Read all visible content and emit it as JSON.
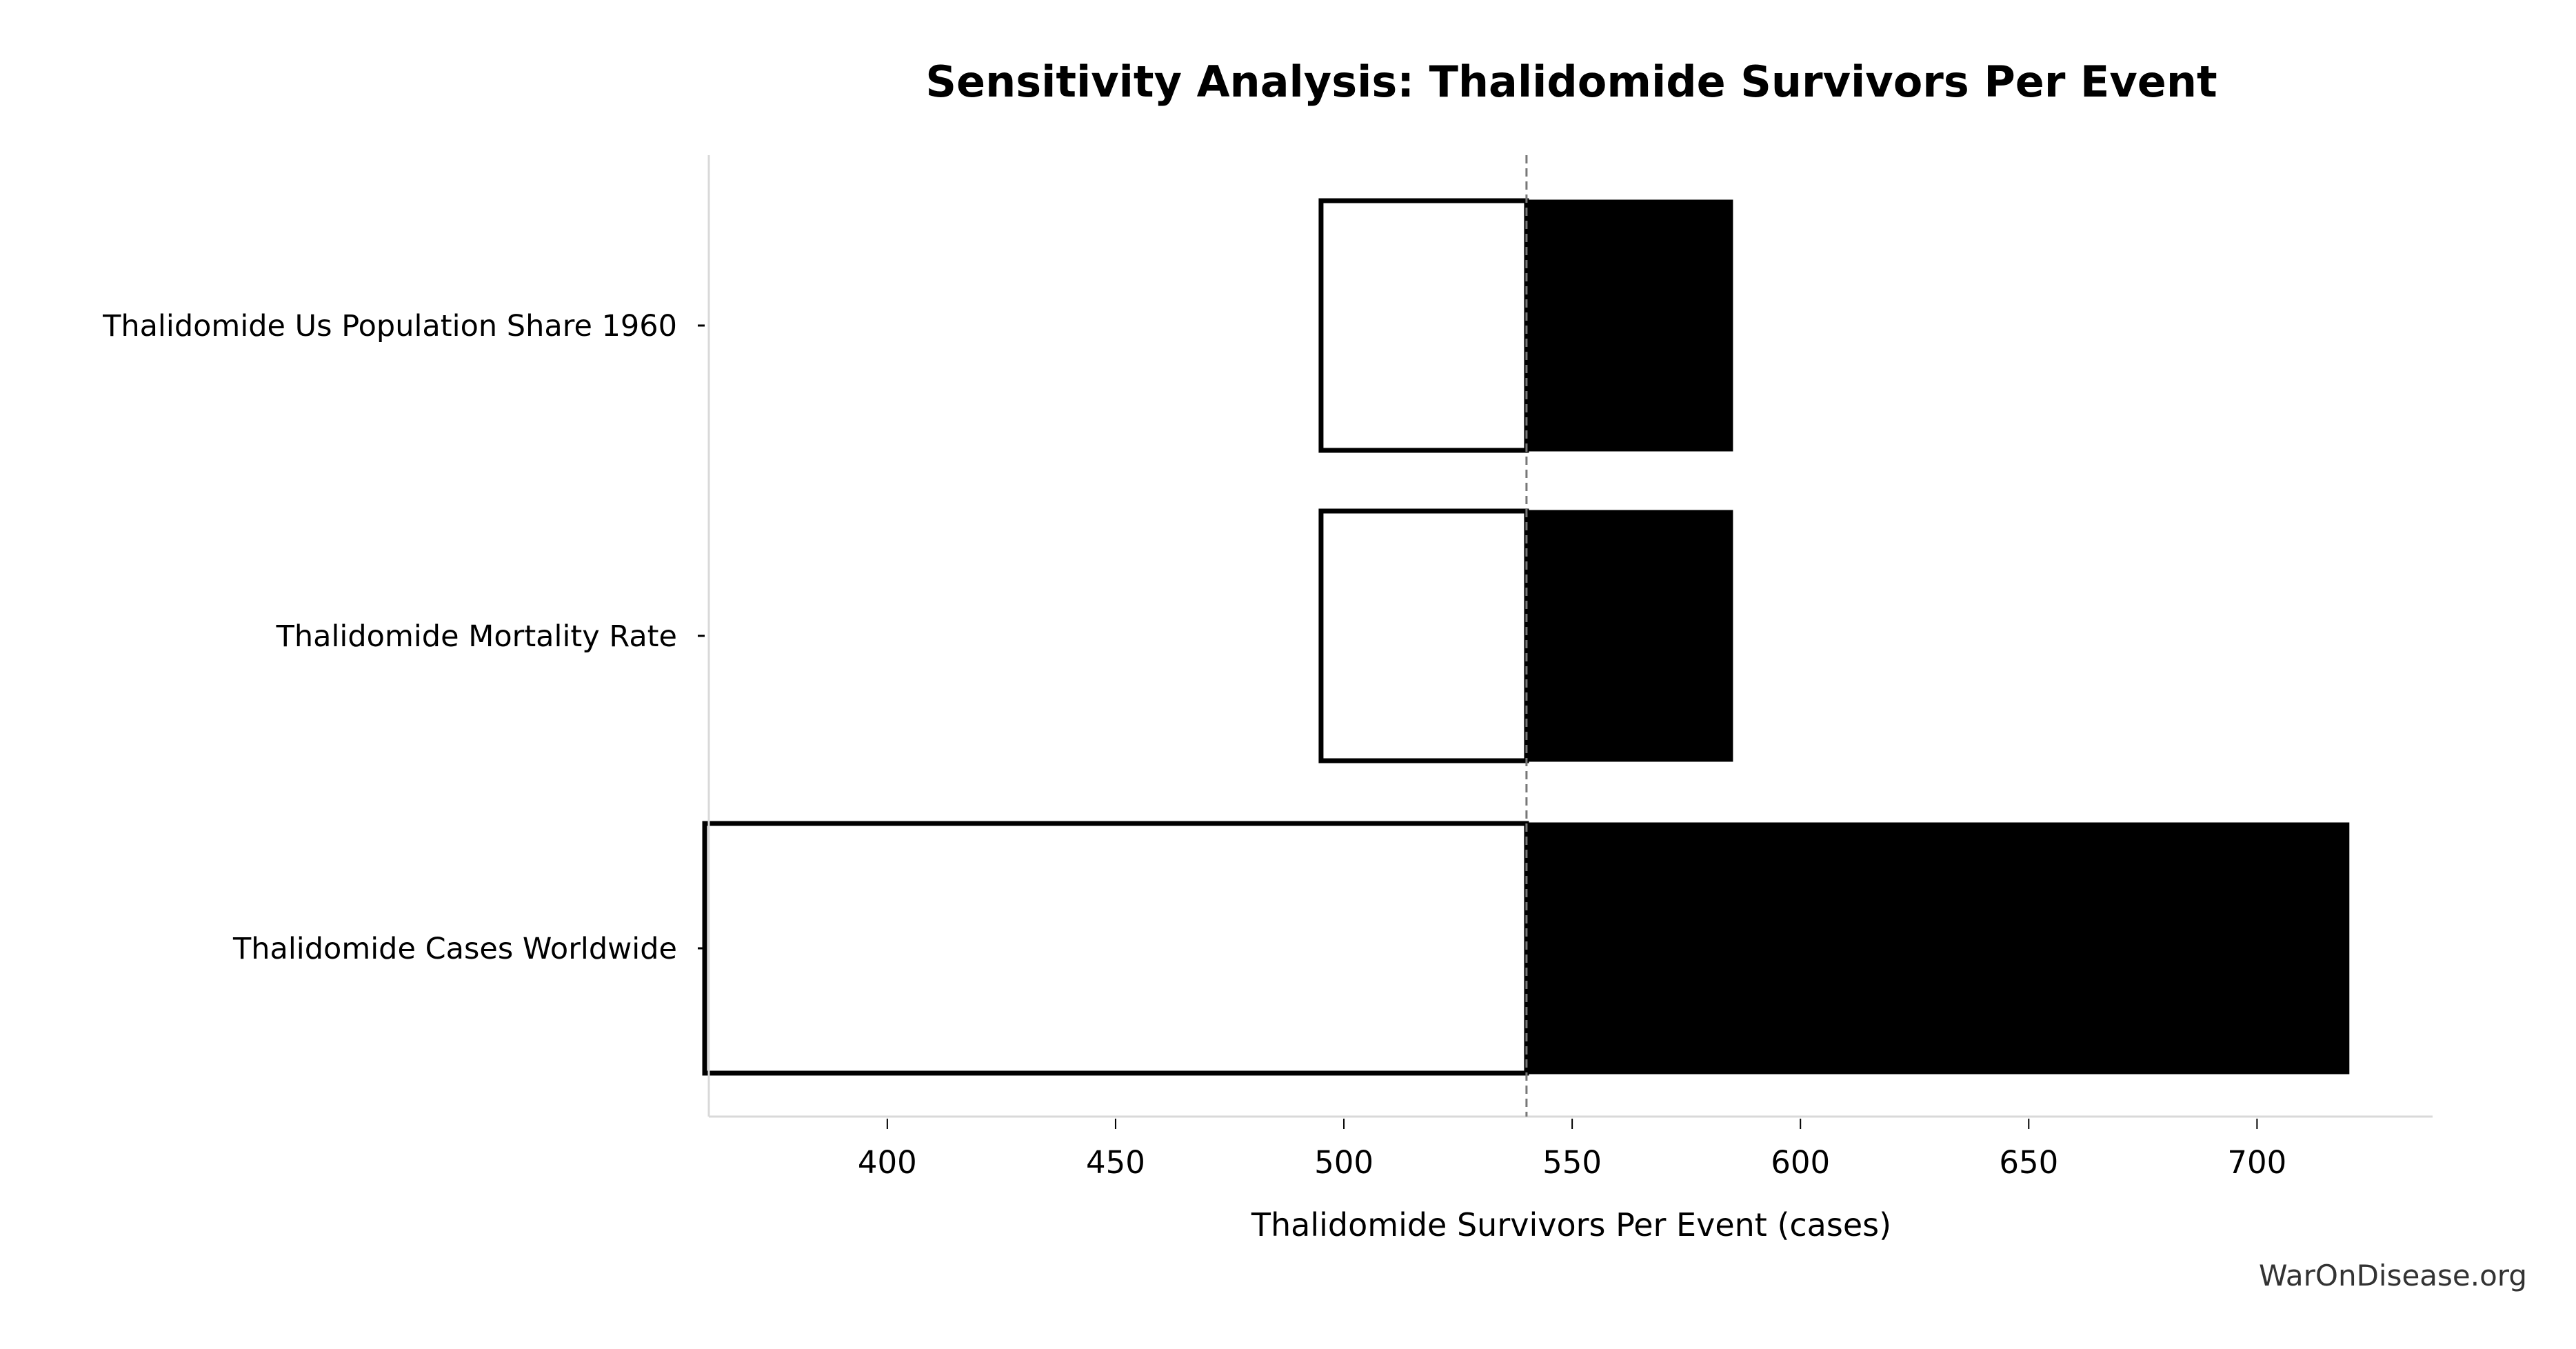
{
  "chart_data": {
    "type": "bar",
    "subtype": "tornado",
    "title": "Sensitivity Analysis: Thalidomide Survivors Per Event",
    "xlabel": "Thalidomide Survivors Per Event (cases)",
    "ylabel": "",
    "xlim": [
      360,
      738
    ],
    "xticks": [
      400,
      450,
      500,
      550,
      600,
      650,
      700
    ],
    "baseline": 540,
    "grid": false,
    "categories": [
      "Thalidomide Us Population Share 1960",
      "Thalidomide Mortality Rate",
      "Thalidomide Cases Worldwide"
    ],
    "series": [
      {
        "name": "low",
        "color": "#ffffff",
        "values": [
          495,
          495,
          360
        ]
      },
      {
        "name": "high",
        "color": "#000000",
        "values": [
          585,
          585,
          720
        ]
      }
    ]
  },
  "watermark": "WarOnDisease.org"
}
